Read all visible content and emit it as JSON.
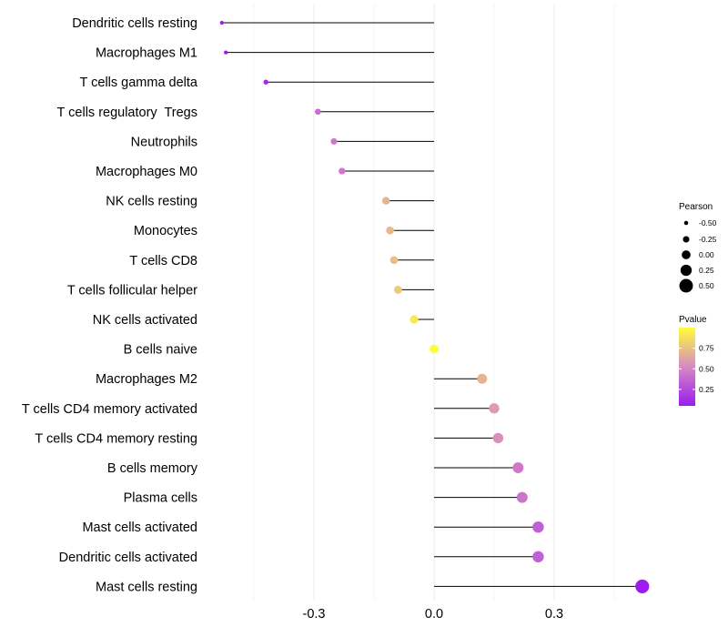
{
  "chart_data": {
    "type": "lollipop",
    "title": "",
    "xlabel": "",
    "ylabel": "",
    "xlim": [
      -0.54,
      0.55
    ],
    "xticks": [
      -0.3,
      0.0,
      0.3
    ],
    "xtick_labels": [
      "-0.3",
      "0.0",
      "0.3"
    ],
    "grid": true,
    "legend_position": "right",
    "categories": [
      "Dendritic cells resting",
      "Macrophages M1",
      "T cells gamma delta",
      "T cells regulatory  Tregs",
      "Neutrophils",
      "Macrophages M0",
      "NK cells resting",
      "Monocytes",
      "T cells CD8",
      "T cells follicular helper",
      "NK cells activated",
      "B cells naive",
      "Macrophages M2",
      "T cells CD4 memory activated",
      "T cells CD4 memory resting",
      "B cells memory",
      "Plasma cells",
      "Mast cells activated",
      "Dendritic cells activated",
      "Mast cells resting"
    ],
    "pearson": [
      -0.53,
      -0.52,
      -0.42,
      -0.29,
      -0.25,
      -0.23,
      -0.12,
      -0.11,
      -0.1,
      -0.09,
      -0.05,
      0.0,
      0.12,
      0.15,
      0.16,
      0.21,
      0.22,
      0.26,
      0.26,
      0.52
    ],
    "pvalue": [
      0.05,
      0.05,
      0.1,
      0.4,
      0.45,
      0.45,
      0.7,
      0.72,
      0.75,
      0.78,
      0.92,
      1.0,
      0.7,
      0.6,
      0.55,
      0.45,
      0.43,
      0.35,
      0.35,
      0.05
    ],
    "legend_size": {
      "title": "Pearson",
      "labels": [
        "-0.50",
        "-0.25",
        "0.00",
        "0.25",
        "0.50"
      ],
      "values": [
        -0.5,
        -0.25,
        0.0,
        0.25,
        0.5
      ]
    },
    "legend_color": {
      "title": "Pvalue",
      "labels": [
        "0.75",
        "0.50",
        "0.25"
      ],
      "values": [
        0.75,
        0.5,
        0.25
      ],
      "range": [
        0.05,
        1.0
      ],
      "low_color": "#9b1bf0",
      "mid_color": "#d68ac2",
      "high_color": "#fffd3a"
    }
  }
}
